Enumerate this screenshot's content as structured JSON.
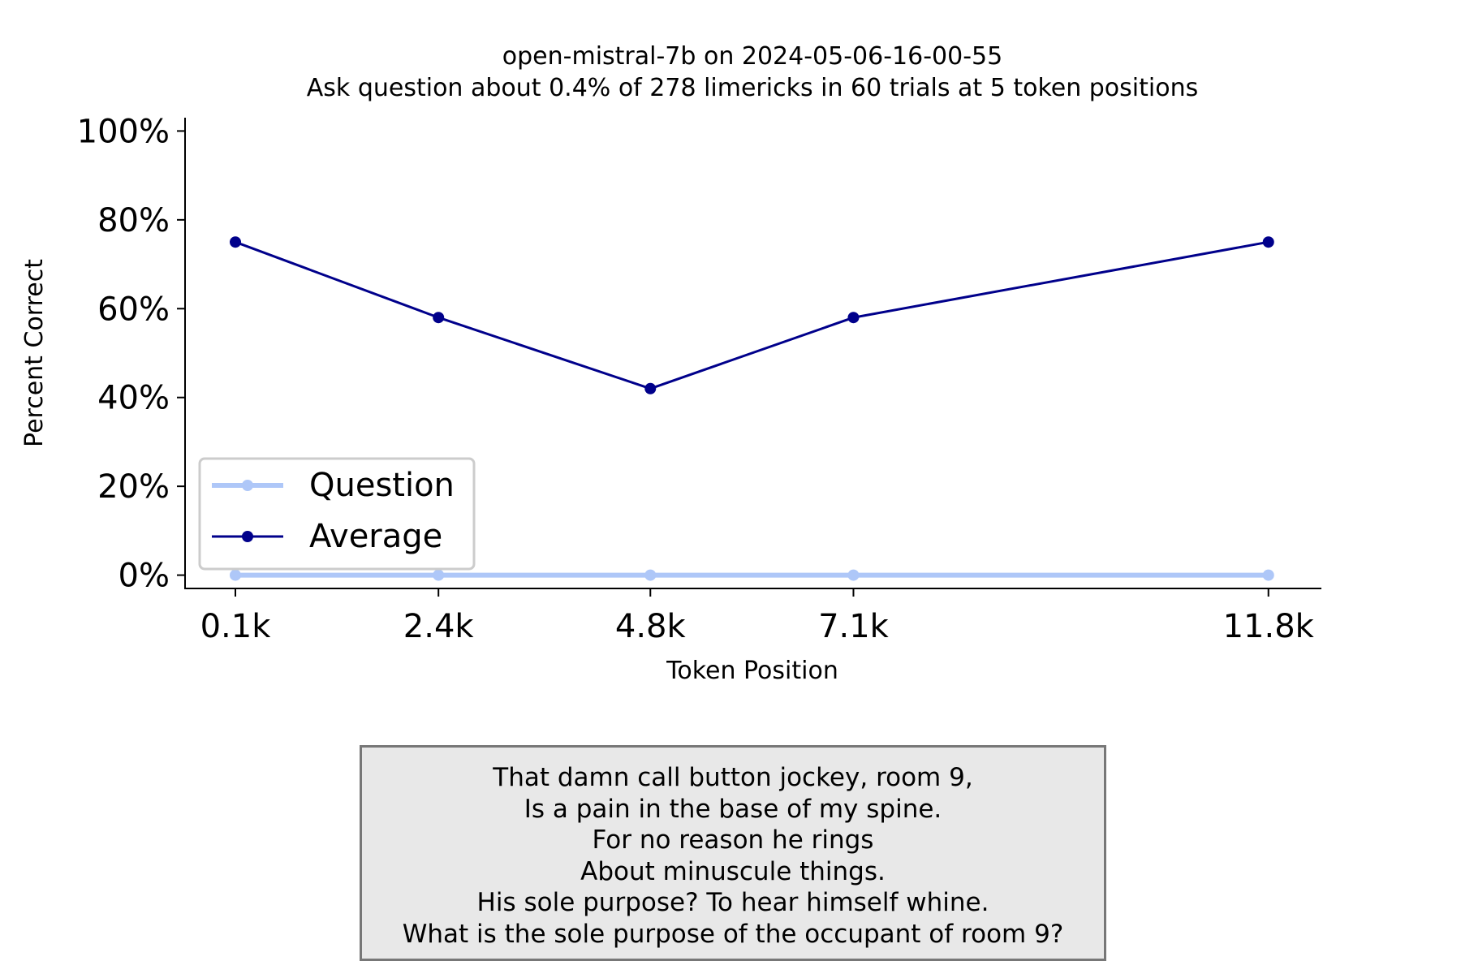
{
  "chart_data": {
    "type": "line",
    "title": "open-mistral-7b on 2024-05-06-16-00-55",
    "subtitle": "Ask question about 0.4% of 278 limericks in 60 trials at 5 token positions",
    "xlabel": "Token Position",
    "ylabel": "Percent Correct",
    "x_tick_labels": [
      "0.1k",
      "2.4k",
      "4.8k",
      "7.1k",
      "11.8k"
    ],
    "x": [
      0.1,
      2.4,
      4.8,
      7.1,
      11.8
    ],
    "xlim": [
      -0.47,
      12.4
    ],
    "ylim": [
      -3,
      103
    ],
    "y_ticks": [
      0,
      20,
      40,
      60,
      80,
      100
    ],
    "y_tick_labels": [
      "0%",
      "20%",
      "40%",
      "60%",
      "80%",
      "100%"
    ],
    "grid": false,
    "legend_position": "lower-left",
    "series": [
      {
        "name": "Question",
        "values": [
          0,
          0,
          0,
          0,
          0
        ],
        "color": "#aec7f8"
      },
      {
        "name": "Average",
        "values": [
          75,
          58,
          42,
          58,
          75
        ],
        "color": "#00008b"
      }
    ]
  },
  "limerick": {
    "lines": [
      "That damn call button jockey, room 9,",
      "Is a pain in the base of my spine.",
      "For no reason he rings",
      "About minuscule things.",
      "His sole purpose? To hear himself whine.",
      "What is the sole purpose of the occupant of room 9?"
    ]
  }
}
